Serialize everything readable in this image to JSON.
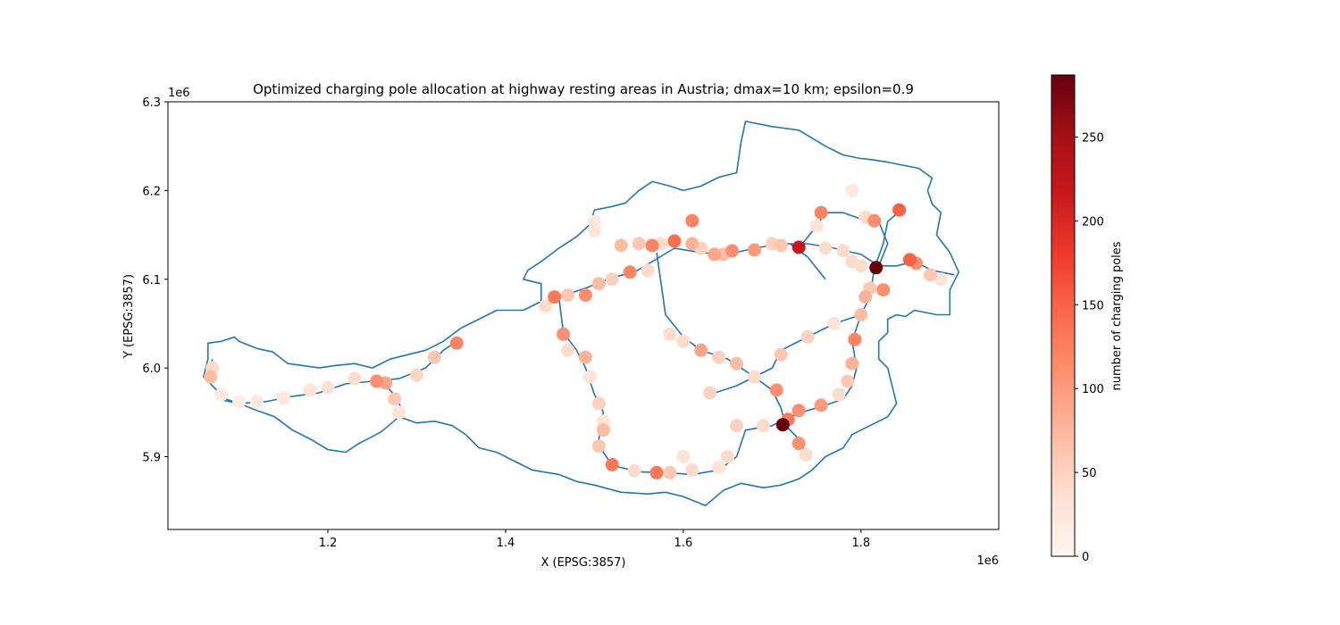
{
  "chart_data": {
    "type": "scatter",
    "title": "Optimized charging pole allocation at highway resting areas in Austria; dmax=10 km; epsilon=0.9",
    "xlabel": "X (EPSG:3857)",
    "ylabel": "Y (EPSG:3857)",
    "x_offset_label": "1e6",
    "y_offset_label": "1e6",
    "xlim": [
      1.02,
      1.955
    ],
    "ylim": [
      5.818,
      6.3
    ],
    "xticks": [
      1.2,
      1.4,
      1.6,
      1.8
    ],
    "xtick_labels": [
      "1.2",
      "1.4",
      "1.6",
      "1.8"
    ],
    "yticks": [
      5.9,
      6.0,
      6.1,
      6.2,
      6.3
    ],
    "ytick_labels": [
      "5.9",
      "6.0",
      "6.1",
      "6.2",
      "6.3"
    ],
    "grid": false,
    "line_color": "#1f77b4",
    "colorbar": {
      "label": "number of charging poles",
      "min": 0,
      "max": 287,
      "ticks": [
        0,
        50,
        100,
        150,
        200,
        250
      ],
      "tick_labels": [
        "0",
        "50",
        "100",
        "150",
        "200",
        "250"
      ],
      "colormap": "Reds",
      "stops": [
        "#fff5f0",
        "#fee0d2",
        "#fcbba1",
        "#fc9272",
        "#fb6a4a",
        "#ef3b2c",
        "#cb181d",
        "#a50f15",
        "#67000d"
      ]
    },
    "boundary": [
      [
        1.065,
        6.028
      ],
      [
        1.08,
        6.03
      ],
      [
        1.095,
        6.035
      ],
      [
        1.1,
        6.03
      ],
      [
        1.12,
        6.022
      ],
      [
        1.138,
        6.018
      ],
      [
        1.155,
        6.005
      ],
      [
        1.17,
        6.003
      ],
      [
        1.19,
        6.0
      ],
      [
        1.21,
        6.003
      ],
      [
        1.23,
        6.005
      ],
      [
        1.25,
        6.0
      ],
      [
        1.27,
        6.01
      ],
      [
        1.29,
        6.015
      ],
      [
        1.31,
        6.02
      ],
      [
        1.33,
        6.03
      ],
      [
        1.35,
        6.045
      ],
      [
        1.37,
        6.055
      ],
      [
        1.39,
        6.065
      ],
      [
        1.42,
        6.065
      ],
      [
        1.44,
        6.075
      ],
      [
        1.44,
        6.095
      ],
      [
        1.42,
        6.1
      ],
      [
        1.425,
        6.11
      ],
      [
        1.44,
        6.12
      ],
      [
        1.46,
        6.135
      ],
      [
        1.48,
        6.148
      ],
      [
        1.495,
        6.162
      ],
      [
        1.5,
        6.178
      ],
      [
        1.52,
        6.182
      ],
      [
        1.535,
        6.186
      ],
      [
        1.55,
        6.2
      ],
      [
        1.565,
        6.21
      ],
      [
        1.585,
        6.205
      ],
      [
        1.6,
        6.2
      ],
      [
        1.62,
        6.205
      ],
      [
        1.64,
        6.215
      ],
      [
        1.66,
        6.22
      ],
      [
        1.665,
        6.255
      ],
      [
        1.67,
        6.278
      ],
      [
        1.7,
        6.272
      ],
      [
        1.73,
        6.268
      ],
      [
        1.76,
        6.25
      ],
      [
        1.78,
        6.24
      ],
      [
        1.8,
        6.236
      ],
      [
        1.81,
        6.235
      ],
      [
        1.83,
        6.232
      ],
      [
        1.85,
        6.228
      ],
      [
        1.865,
        6.225
      ],
      [
        1.88,
        6.214
      ],
      [
        1.875,
        6.2
      ],
      [
        1.88,
        6.185
      ],
      [
        1.89,
        6.175
      ],
      [
        1.885,
        6.15
      ],
      [
        1.9,
        6.13
      ],
      [
        1.91,
        6.108
      ],
      [
        1.9,
        6.088
      ],
      [
        1.9,
        6.06
      ],
      [
        1.885,
        6.06
      ],
      [
        1.86,
        6.065
      ],
      [
        1.85,
        6.058
      ],
      [
        1.84,
        6.06
      ],
      [
        1.83,
        6.055
      ],
      [
        1.83,
        6.04
      ],
      [
        1.82,
        6.03
      ],
      [
        1.82,
        6.01
      ],
      [
        1.83,
        6.0
      ],
      [
        1.835,
        5.98
      ],
      [
        1.84,
        5.96
      ],
      [
        1.83,
        5.945
      ],
      [
        1.81,
        5.935
      ],
      [
        1.79,
        5.925
      ],
      [
        1.78,
        5.91
      ],
      [
        1.76,
        5.9
      ],
      [
        1.745,
        5.885
      ],
      [
        1.73,
        5.875
      ],
      [
        1.71,
        5.868
      ],
      [
        1.69,
        5.865
      ],
      [
        1.665,
        5.87
      ],
      [
        1.645,
        5.862
      ],
      [
        1.625,
        5.845
      ],
      [
        1.6,
        5.855
      ],
      [
        1.58,
        5.86
      ],
      [
        1.56,
        5.858
      ],
      [
        1.53,
        5.86
      ],
      [
        1.5,
        5.868
      ],
      [
        1.48,
        5.872
      ],
      [
        1.46,
        5.88
      ],
      [
        1.43,
        5.885
      ],
      [
        1.41,
        5.895
      ],
      [
        1.39,
        5.905
      ],
      [
        1.37,
        5.91
      ],
      [
        1.355,
        5.925
      ],
      [
        1.34,
        5.935
      ],
      [
        1.32,
        5.94
      ],
      [
        1.3,
        5.938
      ],
      [
        1.28,
        5.945
      ],
      [
        1.26,
        5.928
      ],
      [
        1.245,
        5.92
      ],
      [
        1.235,
        5.915
      ],
      [
        1.22,
        5.905
      ],
      [
        1.2,
        5.908
      ],
      [
        1.18,
        5.92
      ],
      [
        1.16,
        5.93
      ],
      [
        1.14,
        5.945
      ],
      [
        1.12,
        5.952
      ],
      [
        1.1,
        5.96
      ],
      [
        1.085,
        5.965
      ],
      [
        1.07,
        5.98
      ],
      [
        1.06,
        5.99
      ],
      [
        1.065,
        6.01
      ],
      [
        1.065,
        6.028
      ]
    ],
    "highways": [
      [
        [
          1.075,
          5.965
        ],
        [
          1.1,
          5.96
        ],
        [
          1.13,
          5.962
        ],
        [
          1.16,
          5.968
        ],
        [
          1.19,
          5.972
        ],
        [
          1.22,
          5.982
        ],
        [
          1.25,
          5.985
        ],
        [
          1.28,
          5.988
        ],
        [
          1.31,
          6.0
        ],
        [
          1.33,
          6.02
        ],
        [
          1.345,
          6.03
        ]
      ],
      [
        [
          1.065,
          5.99
        ],
        [
          1.07,
          6.01
        ]
      ],
      [
        [
          1.26,
          5.985
        ],
        [
          1.275,
          5.97
        ],
        [
          1.285,
          5.95
        ]
      ],
      [
        [
          1.44,
          6.065
        ],
        [
          1.46,
          6.08
        ],
        [
          1.49,
          6.09
        ],
        [
          1.52,
          6.102
        ],
        [
          1.545,
          6.108
        ],
        [
          1.565,
          6.12
        ],
        [
          1.59,
          6.135
        ],
        [
          1.62,
          6.13
        ],
        [
          1.65,
          6.128
        ],
        [
          1.68,
          6.135
        ],
        [
          1.71,
          6.14
        ],
        [
          1.74,
          6.14
        ],
        [
          1.77,
          6.135
        ],
        [
          1.8,
          6.128
        ],
        [
          1.82,
          6.115
        ],
        [
          1.84,
          6.115
        ],
        [
          1.86,
          6.12
        ],
        [
          1.88,
          6.11
        ],
        [
          1.905,
          6.105
        ]
      ],
      [
        [
          1.46,
          6.08
        ],
        [
          1.465,
          6.04
        ],
        [
          1.48,
          6.02
        ],
        [
          1.49,
          6.0
        ],
        [
          1.5,
          5.97
        ],
        [
          1.51,
          5.95
        ],
        [
          1.505,
          5.92
        ],
        [
          1.51,
          5.905
        ],
        [
          1.52,
          5.89
        ],
        [
          1.55,
          5.883
        ],
        [
          1.58,
          5.882
        ],
        [
          1.61,
          5.88
        ],
        [
          1.64,
          5.885
        ],
        [
          1.66,
          5.9
        ],
        [
          1.67,
          5.93
        ],
        [
          1.7,
          5.935
        ],
        [
          1.72,
          5.945
        ],
        [
          1.74,
          5.952
        ],
        [
          1.76,
          5.958
        ],
        [
          1.78,
          5.965
        ],
        [
          1.79,
          5.98
        ],
        [
          1.795,
          6.0
        ],
        [
          1.79,
          6.03
        ],
        [
          1.8,
          6.06
        ],
        [
          1.81,
          6.08
        ],
        [
          1.815,
          6.112
        ],
        [
          1.825,
          6.14
        ],
        [
          1.83,
          6.165
        ],
        [
          1.845,
          6.178
        ]
      ],
      [
        [
          1.57,
          6.13
        ],
        [
          1.58,
          6.06
        ],
        [
          1.6,
          6.035
        ],
        [
          1.62,
          6.02
        ],
        [
          1.65,
          6.01
        ],
        [
          1.68,
          5.99
        ],
        [
          1.7,
          5.975
        ],
        [
          1.71,
          5.955
        ],
        [
          1.715,
          5.935
        ],
        [
          1.73,
          5.92
        ],
        [
          1.74,
          5.9
        ]
      ],
      [
        [
          1.63,
          5.97
        ],
        [
          1.66,
          5.98
        ],
        [
          1.7,
          6.0
        ],
        [
          1.71,
          6.02
        ],
        [
          1.74,
          6.035
        ],
        [
          1.77,
          6.05
        ],
        [
          1.8,
          6.06
        ]
      ],
      [
        [
          1.73,
          6.135
        ],
        [
          1.75,
          6.16
        ],
        [
          1.76,
          6.175
        ],
        [
          1.78,
          6.175
        ],
        [
          1.8,
          6.168
        ],
        [
          1.82,
          6.165
        ],
        [
          1.83,
          6.14
        ],
        [
          1.82,
          6.115
        ]
      ],
      [
        [
          1.72,
          6.14
        ],
        [
          1.74,
          6.125
        ],
        [
          1.76,
          6.1
        ]
      ]
    ],
    "points": [
      {
        "x": 1.068,
        "y": 5.99,
        "v": 70
      },
      {
        "x": 1.07,
        "y": 6.0,
        "v": 40
      },
      {
        "x": 1.08,
        "y": 5.97,
        "v": 20
      },
      {
        "x": 1.1,
        "y": 5.962,
        "v": 15
      },
      {
        "x": 1.12,
        "y": 5.962,
        "v": 20
      },
      {
        "x": 1.15,
        "y": 5.966,
        "v": 25
      },
      {
        "x": 1.18,
        "y": 5.975,
        "v": 30
      },
      {
        "x": 1.2,
        "y": 5.978,
        "v": 35
      },
      {
        "x": 1.23,
        "y": 5.988,
        "v": 40
      },
      {
        "x": 1.255,
        "y": 5.985,
        "v": 110
      },
      {
        "x": 1.265,
        "y": 5.983,
        "v": 90
      },
      {
        "x": 1.275,
        "y": 5.965,
        "v": 60
      },
      {
        "x": 1.28,
        "y": 5.95,
        "v": 30
      },
      {
        "x": 1.3,
        "y": 5.992,
        "v": 45
      },
      {
        "x": 1.32,
        "y": 6.012,
        "v": 60
      },
      {
        "x": 1.345,
        "y": 6.028,
        "v": 120
      },
      {
        "x": 1.445,
        "y": 6.07,
        "v": 40
      },
      {
        "x": 1.455,
        "y": 6.08,
        "v": 130
      },
      {
        "x": 1.47,
        "y": 6.082,
        "v": 60
      },
      {
        "x": 1.49,
        "y": 6.082,
        "v": 110
      },
      {
        "x": 1.505,
        "y": 6.095,
        "v": 70
      },
      {
        "x": 1.52,
        "y": 6.1,
        "v": 50
      },
      {
        "x": 1.54,
        "y": 6.108,
        "v": 120
      },
      {
        "x": 1.56,
        "y": 6.11,
        "v": 40
      },
      {
        "x": 1.465,
        "y": 6.038,
        "v": 110
      },
      {
        "x": 1.47,
        "y": 6.02,
        "v": 40
      },
      {
        "x": 1.49,
        "y": 6.012,
        "v": 80
      },
      {
        "x": 1.495,
        "y": 5.99,
        "v": 30
      },
      {
        "x": 1.505,
        "y": 5.96,
        "v": 50
      },
      {
        "x": 1.51,
        "y": 5.94,
        "v": 30
      },
      {
        "x": 1.51,
        "y": 5.93,
        "v": 70
      },
      {
        "x": 1.505,
        "y": 5.912,
        "v": 60
      },
      {
        "x": 1.52,
        "y": 5.891,
        "v": 130
      },
      {
        "x": 1.545,
        "y": 5.884,
        "v": 40
      },
      {
        "x": 1.57,
        "y": 5.882,
        "v": 130
      },
      {
        "x": 1.585,
        "y": 5.882,
        "v": 60
      },
      {
        "x": 1.6,
        "y": 5.9,
        "v": 30
      },
      {
        "x": 1.61,
        "y": 5.885,
        "v": 40
      },
      {
        "x": 1.64,
        "y": 5.888,
        "v": 30
      },
      {
        "x": 1.65,
        "y": 5.9,
        "v": 40
      },
      {
        "x": 1.66,
        "y": 5.935,
        "v": 50
      },
      {
        "x": 1.69,
        "y": 5.935,
        "v": 40
      },
      {
        "x": 1.712,
        "y": 5.936,
        "v": 287
      },
      {
        "x": 1.718,
        "y": 5.942,
        "v": 130
      },
      {
        "x": 1.73,
        "y": 5.952,
        "v": 110
      },
      {
        "x": 1.73,
        "y": 5.915,
        "v": 110
      },
      {
        "x": 1.738,
        "y": 5.902,
        "v": 40
      },
      {
        "x": 1.755,
        "y": 5.958,
        "v": 100
      },
      {
        "x": 1.775,
        "y": 5.97,
        "v": 40
      },
      {
        "x": 1.785,
        "y": 5.985,
        "v": 60
      },
      {
        "x": 1.79,
        "y": 6.005,
        "v": 80
      },
      {
        "x": 1.793,
        "y": 6.032,
        "v": 120
      },
      {
        "x": 1.8,
        "y": 6.06,
        "v": 70
      },
      {
        "x": 1.805,
        "y": 6.08,
        "v": 80
      },
      {
        "x": 1.81,
        "y": 6.09,
        "v": 60
      },
      {
        "x": 1.5,
        "y": 6.155,
        "v": 30
      },
      {
        "x": 1.5,
        "y": 6.165,
        "v": 20
      },
      {
        "x": 1.53,
        "y": 6.138,
        "v": 70
      },
      {
        "x": 1.55,
        "y": 6.14,
        "v": 60
      },
      {
        "x": 1.565,
        "y": 6.138,
        "v": 120
      },
      {
        "x": 1.575,
        "y": 6.14,
        "v": 40
      },
      {
        "x": 1.59,
        "y": 6.143,
        "v": 140
      },
      {
        "x": 1.61,
        "y": 6.14,
        "v": 80
      },
      {
        "x": 1.62,
        "y": 6.135,
        "v": 50
      },
      {
        "x": 1.635,
        "y": 6.128,
        "v": 90
      },
      {
        "x": 1.645,
        "y": 6.128,
        "v": 70
      },
      {
        "x": 1.655,
        "y": 6.132,
        "v": 110
      },
      {
        "x": 1.68,
        "y": 6.133,
        "v": 100
      },
      {
        "x": 1.7,
        "y": 6.14,
        "v": 50
      },
      {
        "x": 1.71,
        "y": 6.138,
        "v": 60
      },
      {
        "x": 1.73,
        "y": 6.136,
        "v": 220
      },
      {
        "x": 1.76,
        "y": 6.135,
        "v": 40
      },
      {
        "x": 1.78,
        "y": 6.132,
        "v": 40
      },
      {
        "x": 1.79,
        "y": 6.12,
        "v": 40
      },
      {
        "x": 1.8,
        "y": 6.115,
        "v": 40
      },
      {
        "x": 1.817,
        "y": 6.113,
        "v": 287
      },
      {
        "x": 1.855,
        "y": 6.122,
        "v": 150
      },
      {
        "x": 1.862,
        "y": 6.118,
        "v": 110
      },
      {
        "x": 1.878,
        "y": 6.105,
        "v": 60
      },
      {
        "x": 1.89,
        "y": 6.1,
        "v": 30
      },
      {
        "x": 1.61,
        "y": 6.166,
        "v": 120
      },
      {
        "x": 1.755,
        "y": 6.175,
        "v": 120
      },
      {
        "x": 1.75,
        "y": 6.16,
        "v": 30
      },
      {
        "x": 1.805,
        "y": 6.17,
        "v": 40
      },
      {
        "x": 1.815,
        "y": 6.166,
        "v": 110
      },
      {
        "x": 1.79,
        "y": 6.2,
        "v": 20
      },
      {
        "x": 1.843,
        "y": 6.178,
        "v": 150
      },
      {
        "x": 1.825,
        "y": 6.088,
        "v": 110
      },
      {
        "x": 1.585,
        "y": 6.038,
        "v": 40
      },
      {
        "x": 1.6,
        "y": 6.03,
        "v": 40
      },
      {
        "x": 1.62,
        "y": 6.02,
        "v": 90
      },
      {
        "x": 1.64,
        "y": 6.012,
        "v": 50
      },
      {
        "x": 1.66,
        "y": 6.005,
        "v": 70
      },
      {
        "x": 1.68,
        "y": 5.99,
        "v": 40
      },
      {
        "x": 1.705,
        "y": 5.975,
        "v": 110
      },
      {
        "x": 1.63,
        "y": 5.972,
        "v": 50
      },
      {
        "x": 1.71,
        "y": 6.015,
        "v": 60
      },
      {
        "x": 1.74,
        "y": 6.035,
        "v": 50
      },
      {
        "x": 1.77,
        "y": 6.05,
        "v": 30
      }
    ]
  }
}
